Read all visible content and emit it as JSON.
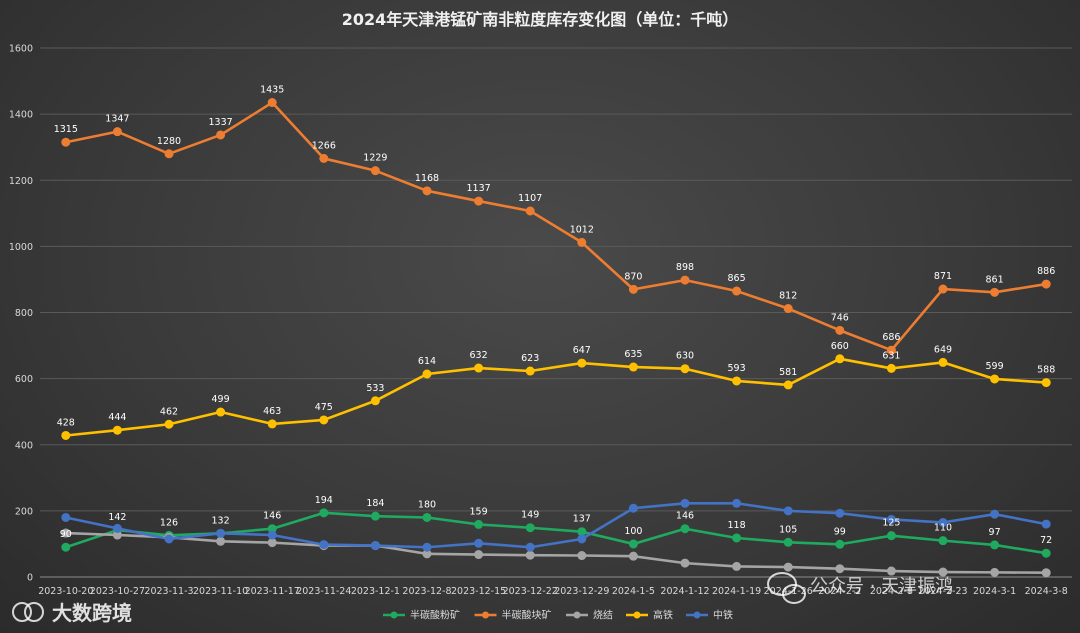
{
  "chart_data": {
    "type": "line",
    "title": "2024年天津港锰矿南非粒度库存变化图（单位：千吨）",
    "xlabel": "",
    "ylabel": "",
    "ylim": [
      0,
      1600
    ],
    "yticks": [
      0,
      200,
      400,
      600,
      800,
      1000,
      1200,
      1400,
      1600
    ],
    "grid": true,
    "legend_position": "bottom",
    "categories": [
      "2023-10-20",
      "2023-10-27",
      "2023-11-3",
      "2023-11-10",
      "2023-11-17",
      "2023-11-24",
      "2023-12-1",
      "2023-12-8",
      "2023-12-15",
      "2023-12-22",
      "2023-12-29",
      "2024-1-5",
      "2024-1-12",
      "2024-1-19",
      "2024-1-26",
      "2024-2-2",
      "2024-2-8",
      "2024-2-23",
      "2024-3-1",
      "2024-3-8"
    ],
    "series": [
      {
        "name": "半碳酸粉矿",
        "color": "#1faa5f",
        "labeled": true,
        "values": [
          90,
          142,
          126,
          132,
          146,
          194,
          184,
          180,
          159,
          149,
          137,
          100,
          146,
          118,
          105,
          99,
          125,
          110,
          97,
          72
        ],
        "labels": [
          "90",
          "142",
          "126",
          "132",
          "146",
          "194",
          "184",
          "180",
          "159",
          "149",
          "137",
          "100",
          "146",
          "118",
          "105",
          "99",
          "125",
          "110",
          "97",
          "72"
        ]
      },
      {
        "name": "半碳酸块矿",
        "color": "#ed7d31",
        "labeled": true,
        "values": [
          1315,
          1347,
          1280,
          1337,
          1435,
          1266,
          1229,
          1168,
          1137,
          1107,
          1012,
          870,
          898,
          865,
          812,
          746,
          686,
          871,
          861,
          886
        ],
        "labels": [
          "1315",
          "1347",
          "1280",
          "1337",
          "1435",
          "1266",
          "1229",
          "1168",
          "1137",
          "1107",
          "1012",
          "870",
          "898",
          "865",
          "812",
          "746",
          "686",
          "871",
          "861",
          "886"
        ]
      },
      {
        "name": "烧结",
        "color": "#a5a5a5",
        "labeled": false,
        "values": [
          133,
          127,
          120,
          108,
          104,
          95,
          95,
          70,
          68,
          66,
          65,
          63,
          42,
          32,
          30,
          25,
          18,
          15,
          14,
          13
        ]
      },
      {
        "name": "高铁",
        "color": "#ffc000",
        "labeled": true,
        "values": [
          428,
          444,
          462,
          499,
          463,
          475,
          533,
          614,
          632,
          623,
          647,
          635,
          630,
          593,
          581,
          660,
          631,
          649,
          599,
          588
        ],
        "labels": [
          "428",
          "444",
          "462",
          "499",
          "463",
          "475",
          "533",
          "614",
          "632",
          "623",
          "647",
          "635",
          "630",
          "593",
          "581",
          "660",
          "631",
          "649",
          "599",
          "588"
        ]
      },
      {
        "name": "中铁",
        "color": "#4472c4",
        "labeled": false,
        "values": [
          180,
          147,
          115,
          132,
          127,
          98,
          95,
          90,
          102,
          90,
          115,
          208,
          223,
          223,
          200,
          193,
          174,
          165,
          190,
          160
        ]
      }
    ]
  },
  "watermark": {
    "left_logo": "大数跨境",
    "right_text": "公众号 · 天津振鸿"
  }
}
